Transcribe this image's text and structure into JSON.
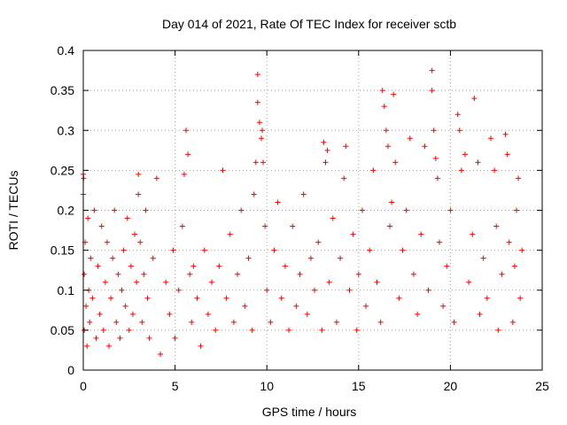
{
  "chart_data": {
    "type": "scatter",
    "title": "Day 014 of 2021, Rate Of TEC Index for receiver sctb",
    "xlabel": "GPS time / hours",
    "ylabel": "ROTI / TECUs",
    "xlim": [
      0,
      25
    ],
    "ylim": [
      0,
      0.4
    ],
    "x_ticks": [
      {
        "value": 0,
        "label": "0"
      },
      {
        "value": 5,
        "label": "5"
      },
      {
        "value": 10,
        "label": "10"
      },
      {
        "value": 15,
        "label": "15"
      },
      {
        "value": 20,
        "label": "20"
      },
      {
        "value": 25,
        "label": "25"
      }
    ],
    "y_ticks": [
      {
        "value": 0,
        "label": "0"
      },
      {
        "value": 0.05,
        "label": "0.05"
      },
      {
        "value": 0.1,
        "label": "0.1"
      },
      {
        "value": 0.15,
        "label": "0.15"
      },
      {
        "value": 0.2,
        "label": "0.2"
      },
      {
        "value": 0.25,
        "label": "0.25"
      },
      {
        "value": 0.3,
        "label": "0.3"
      },
      {
        "value": 0.35,
        "label": "0.35"
      },
      {
        "value": 0.4,
        "label": "0.4"
      }
    ],
    "grid": true,
    "marker": "+",
    "marker_color": "#ff0000",
    "series": [
      {
        "points": [
          [
            0.0,
            0.245
          ],
          [
            0.0,
            0.22
          ],
          [
            0.02,
            0.24
          ],
          [
            0.05,
            0.12
          ],
          [
            0.05,
            0.05
          ],
          [
            0.1,
            0.16
          ],
          [
            0.15,
            0.08
          ],
          [
            0.2,
            0.03
          ],
          [
            0.25,
            0.19
          ],
          [
            0.3,
            0.1
          ],
          [
            0.35,
            0.06
          ],
          [
            0.4,
            0.14
          ],
          [
            0.5,
            0.09
          ],
          [
            0.6,
            0.2
          ],
          [
            0.7,
            0.04
          ],
          [
            0.8,
            0.13
          ],
          [
            0.9,
            0.07
          ],
          [
            1.0,
            0.18
          ],
          [
            1.1,
            0.05
          ],
          [
            1.2,
            0.11
          ],
          [
            1.3,
            0.16
          ],
          [
            1.4,
            0.03
          ],
          [
            1.5,
            0.09
          ],
          [
            1.6,
            0.14
          ],
          [
            1.7,
            0.2
          ],
          [
            1.8,
            0.06
          ],
          [
            1.9,
            0.12
          ],
          [
            2.0,
            0.04
          ],
          [
            2.1,
            0.1
          ],
          [
            2.2,
            0.15
          ],
          [
            2.3,
            0.08
          ],
          [
            2.4,
            0.19
          ],
          [
            2.5,
            0.05
          ],
          [
            2.6,
            0.13
          ],
          [
            2.7,
            0.07
          ],
          [
            2.8,
            0.17
          ],
          [
            2.9,
            0.11
          ],
          [
            3.0,
            0.245
          ],
          [
            3.0,
            0.22
          ],
          [
            3.1,
            0.16
          ],
          [
            3.2,
            0.06
          ],
          [
            3.3,
            0.12
          ],
          [
            3.4,
            0.2
          ],
          [
            3.5,
            0.09
          ],
          [
            3.6,
            0.04
          ],
          [
            3.8,
            0.14
          ],
          [
            4.0,
            0.24
          ],
          [
            4.2,
            0.02
          ],
          [
            4.5,
            0.11
          ],
          [
            4.7,
            0.07
          ],
          [
            4.9,
            0.15
          ],
          [
            5.0,
            0.04
          ],
          [
            5.2,
            0.1
          ],
          [
            5.4,
            0.18
          ],
          [
            5.5,
            0.245
          ],
          [
            5.6,
            0.3
          ],
          [
            5.7,
            0.27
          ],
          [
            5.8,
            0.12
          ],
          [
            5.9,
            0.06
          ],
          [
            6.0,
            0.13
          ],
          [
            6.2,
            0.09
          ],
          [
            6.4,
            0.03
          ],
          [
            6.6,
            0.15
          ],
          [
            6.8,
            0.07
          ],
          [
            7.0,
            0.11
          ],
          [
            7.2,
            0.05
          ],
          [
            7.4,
            0.13
          ],
          [
            7.6,
            0.25
          ],
          [
            7.8,
            0.09
          ],
          [
            8.0,
            0.17
          ],
          [
            8.2,
            0.06
          ],
          [
            8.4,
            0.12
          ],
          [
            8.6,
            0.2
          ],
          [
            8.8,
            0.08
          ],
          [
            9.0,
            0.14
          ],
          [
            9.2,
            0.05
          ],
          [
            9.3,
            0.22
          ],
          [
            9.4,
            0.26
          ],
          [
            9.5,
            0.37
          ],
          [
            9.5,
            0.335
          ],
          [
            9.6,
            0.31
          ],
          [
            9.7,
            0.29
          ],
          [
            9.75,
            0.3
          ],
          [
            9.8,
            0.26
          ],
          [
            9.9,
            0.18
          ],
          [
            10.0,
            0.1
          ],
          [
            10.2,
            0.06
          ],
          [
            10.4,
            0.15
          ],
          [
            10.6,
            0.21
          ],
          [
            10.8,
            0.09
          ],
          [
            11.0,
            0.13
          ],
          [
            11.2,
            0.05
          ],
          [
            11.4,
            0.18
          ],
          [
            11.6,
            0.08
          ],
          [
            11.8,
            0.12
          ],
          [
            12.0,
            0.22
          ],
          [
            12.2,
            0.07
          ],
          [
            12.4,
            0.14
          ],
          [
            12.6,
            0.1
          ],
          [
            12.8,
            0.16
          ],
          [
            13.0,
            0.05
          ],
          [
            13.1,
            0.285
          ],
          [
            13.2,
            0.26
          ],
          [
            13.3,
            0.275
          ],
          [
            13.4,
            0.11
          ],
          [
            13.6,
            0.19
          ],
          [
            13.8,
            0.06
          ],
          [
            14.0,
            0.14
          ],
          [
            14.2,
            0.24
          ],
          [
            14.3,
            0.28
          ],
          [
            14.5,
            0.1
          ],
          [
            14.7,
            0.17
          ],
          [
            14.9,
            0.05
          ],
          [
            15.0,
            0.12
          ],
          [
            15.2,
            0.2
          ],
          [
            15.4,
            0.08
          ],
          [
            15.6,
            0.15
          ],
          [
            15.8,
            0.25
          ],
          [
            16.0,
            0.11
          ],
          [
            16.2,
            0.06
          ],
          [
            16.3,
            0.35
          ],
          [
            16.4,
            0.33
          ],
          [
            16.5,
            0.3
          ],
          [
            16.6,
            0.28
          ],
          [
            16.7,
            0.18
          ],
          [
            16.8,
            0.21
          ],
          [
            16.9,
            0.345
          ],
          [
            17.0,
            0.26
          ],
          [
            17.2,
            0.09
          ],
          [
            17.4,
            0.15
          ],
          [
            17.6,
            0.2
          ],
          [
            17.8,
            0.29
          ],
          [
            18.0,
            0.12
          ],
          [
            18.2,
            0.07
          ],
          [
            18.4,
            0.17
          ],
          [
            18.6,
            0.28
          ],
          [
            18.8,
            0.1
          ],
          [
            19.0,
            0.375
          ],
          [
            19.0,
            0.35
          ],
          [
            19.1,
            0.3
          ],
          [
            19.2,
            0.265
          ],
          [
            19.3,
            0.24
          ],
          [
            19.4,
            0.16
          ],
          [
            19.6,
            0.08
          ],
          [
            19.8,
            0.13
          ],
          [
            20.0,
            0.2
          ],
          [
            20.2,
            0.06
          ],
          [
            20.4,
            0.32
          ],
          [
            20.5,
            0.3
          ],
          [
            20.6,
            0.25
          ],
          [
            20.8,
            0.27
          ],
          [
            21.0,
            0.11
          ],
          [
            21.2,
            0.17
          ],
          [
            21.3,
            0.34
          ],
          [
            21.5,
            0.26
          ],
          [
            21.6,
            0.07
          ],
          [
            21.8,
            0.14
          ],
          [
            22.0,
            0.09
          ],
          [
            22.2,
            0.29
          ],
          [
            22.4,
            0.25
          ],
          [
            22.5,
            0.18
          ],
          [
            22.6,
            0.05
          ],
          [
            22.8,
            0.12
          ],
          [
            23.0,
            0.295
          ],
          [
            23.1,
            0.27
          ],
          [
            23.2,
            0.16
          ],
          [
            23.4,
            0.06
          ],
          [
            23.5,
            0.13
          ],
          [
            23.6,
            0.2
          ],
          [
            23.7,
            0.24
          ],
          [
            23.8,
            0.09
          ],
          [
            23.9,
            0.15
          ]
        ]
      }
    ]
  }
}
